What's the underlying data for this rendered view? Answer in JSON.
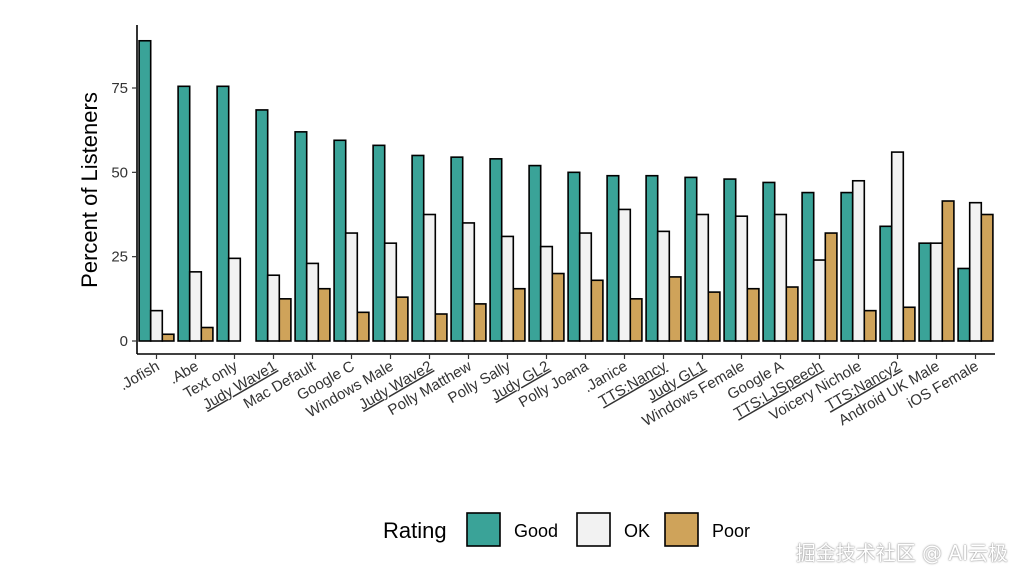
{
  "chart_data": {
    "type": "bar",
    "title": "",
    "xlabel": "",
    "ylabel": "Percent of Listeners",
    "ylim": [
      0,
      90
    ],
    "yticks": [
      0,
      25,
      50,
      75
    ],
    "grid": false,
    "legend": {
      "title": "Rating",
      "placement": "bottom"
    },
    "categories": [
      ".Jofish",
      ".Abe",
      "Text only",
      "Judy Wave1",
      "Mac Default",
      "Google C",
      "Windows Male",
      "Judy Wave2",
      "Polly Matthew",
      "Polly Sally",
      "Judy GL2",
      "Polly Joana",
      ".Janice",
      "TTS:Nancy",
      "Judy GL1",
      "Windows Female",
      "Google A",
      "TTS:LJSpeech",
      "Voicery Nichole",
      "TTS:Nancy2",
      "Android UK Male",
      "iOS Female"
    ],
    "underlined_categories": [
      "Judy Wave1",
      "Judy Wave2",
      "Judy GL2",
      "TTS:Nancy",
      "Judy GL1",
      "TTS:LJSpeech",
      "TTS:Nancy2"
    ],
    "series": [
      {
        "name": "Good",
        "color": "#3aa398",
        "values": [
          89,
          75.5,
          75.5,
          68.5,
          62,
          59.5,
          58,
          55,
          54.5,
          54,
          52,
          50,
          49,
          49,
          48.5,
          48,
          47,
          44,
          44,
          34,
          29,
          21.5
        ]
      },
      {
        "name": "OK",
        "color": "#f2f2f2",
        "values": [
          9,
          20.5,
          24.5,
          19.5,
          23,
          32,
          29,
          37.5,
          35,
          31,
          28,
          32,
          39,
          32.5,
          37.5,
          37,
          37.5,
          24,
          47.5,
          56,
          29,
          41
        ]
      },
      {
        "name": "Poor",
        "color": "#cfa35a",
        "values": [
          2,
          4,
          0,
          12.5,
          15.5,
          8.5,
          13,
          8,
          11,
          15.5,
          20,
          18,
          12.5,
          19,
          14.5,
          15.5,
          16,
          32,
          9,
          10,
          41.5,
          37.5
        ]
      }
    ]
  },
  "watermark": "掘金技术社区 @ AI云极"
}
